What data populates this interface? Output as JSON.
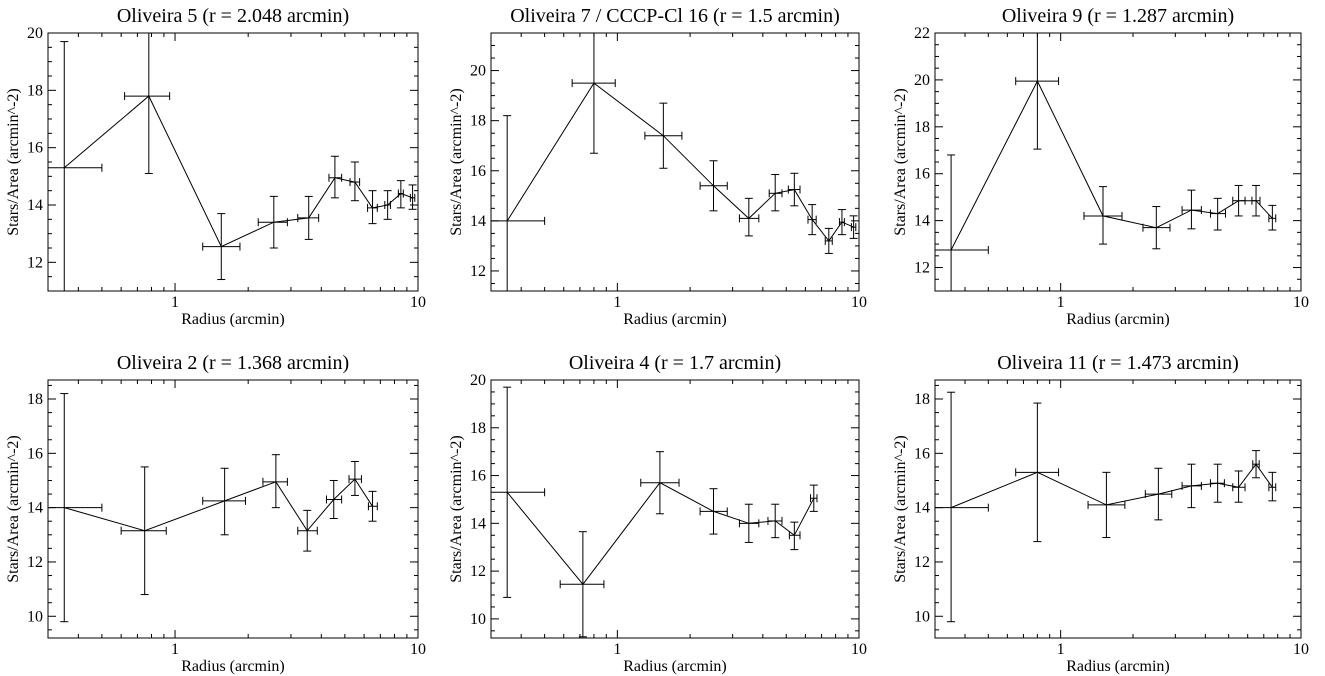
{
  "chart_data": [
    {
      "type": "line",
      "title": "Oliveira 5 (r = 2.048 arcmin)",
      "xlabel": "Radius (arcmin)",
      "ylabel": "Stars/Area (arcmin^-2)",
      "xscale": "log",
      "xlim": [
        0.3,
        10
      ],
      "ylim": [
        11,
        20
      ],
      "xticks": [
        1,
        10
      ],
      "yticks": [
        12,
        14,
        16,
        18,
        20
      ],
      "points": [
        {
          "x": 0.35,
          "y": 15.3,
          "xerr": [
            0.05,
            0.5
          ],
          "yerr": [
            11,
            19.7
          ]
        },
        {
          "x": 0.78,
          "y": 17.8,
          "xerr": [
            0.62,
            0.95
          ],
          "yerr": [
            15.1,
            20.4
          ]
        },
        {
          "x": 1.55,
          "y": 12.55,
          "xerr": [
            1.3,
            1.85
          ],
          "yerr": [
            11.4,
            13.7
          ]
        },
        {
          "x": 2.55,
          "y": 13.4,
          "xerr": [
            2.2,
            2.9
          ],
          "yerr": [
            12.5,
            14.3
          ]
        },
        {
          "x": 3.55,
          "y": 13.55,
          "xerr": [
            3.2,
            3.9
          ],
          "yerr": [
            12.8,
            14.3
          ]
        },
        {
          "x": 4.55,
          "y": 14.95,
          "xerr": [
            4.3,
            4.85
          ],
          "yerr": [
            14.25,
            15.7
          ]
        },
        {
          "x": 5.5,
          "y": 14.8,
          "xerr": [
            5.25,
            5.75
          ],
          "yerr": [
            14.15,
            15.5
          ]
        },
        {
          "x": 6.5,
          "y": 13.9,
          "xerr": [
            6.2,
            6.8
          ],
          "yerr": [
            13.35,
            14.5
          ]
        },
        {
          "x": 7.5,
          "y": 14.0,
          "xerr": [
            7.3,
            7.7
          ],
          "yerr": [
            13.5,
            14.5
          ]
        },
        {
          "x": 8.5,
          "y": 14.4,
          "xerr": [
            8.3,
            8.7
          ],
          "yerr": [
            13.9,
            14.85
          ]
        },
        {
          "x": 9.5,
          "y": 14.25,
          "xerr": [
            9.3,
            9.7
          ],
          "yerr": [
            13.85,
            14.7
          ]
        }
      ]
    },
    {
      "type": "line",
      "title": "Oliveira 7 / CCCP-Cl 16 (r = 1.5 arcmin)",
      "xlabel": "Radius (arcmin)",
      "ylabel": "Stars/Area (arcmin^-2)",
      "xscale": "log",
      "xlim": [
        0.3,
        10
      ],
      "ylim": [
        11.2,
        21.5
      ],
      "xticks": [
        1,
        10
      ],
      "yticks": [
        12,
        14,
        16,
        18,
        20
      ],
      "points": [
        {
          "x": 0.35,
          "y": 14.0,
          "xerr": [
            0.05,
            0.5
          ],
          "yerr": [
            11.2,
            18.2
          ]
        },
        {
          "x": 0.8,
          "y": 19.5,
          "xerr": [
            0.65,
            0.98
          ],
          "yerr": [
            16.7,
            21.5
          ]
        },
        {
          "x": 1.55,
          "y": 17.4,
          "xerr": [
            1.3,
            1.85
          ],
          "yerr": [
            16.1,
            18.7
          ]
        },
        {
          "x": 2.5,
          "y": 15.4,
          "xerr": [
            2.2,
            2.85
          ],
          "yerr": [
            14.4,
            16.4
          ]
        },
        {
          "x": 3.5,
          "y": 14.1,
          "xerr": [
            3.2,
            3.85
          ],
          "yerr": [
            13.4,
            14.9
          ]
        },
        {
          "x": 4.5,
          "y": 15.1,
          "xerr": [
            4.25,
            4.8
          ],
          "yerr": [
            14.4,
            15.85
          ]
        },
        {
          "x": 5.4,
          "y": 15.25,
          "xerr": [
            5.1,
            5.7
          ],
          "yerr": [
            14.6,
            15.9
          ]
        },
        {
          "x": 6.4,
          "y": 14.05,
          "xerr": [
            6.15,
            6.65
          ],
          "yerr": [
            13.45,
            14.65
          ]
        },
        {
          "x": 7.5,
          "y": 13.2,
          "xerr": [
            7.25,
            7.75
          ],
          "yerr": [
            12.7,
            13.7
          ]
        },
        {
          "x": 8.5,
          "y": 13.95,
          "xerr": [
            8.3,
            8.7
          ],
          "yerr": [
            13.45,
            14.45
          ]
        },
        {
          "x": 9.5,
          "y": 13.75,
          "xerr": [
            9.3,
            9.7
          ],
          "yerr": [
            13.3,
            14.2
          ]
        }
      ]
    },
    {
      "type": "line",
      "title": "Oliveira 9 (r = 1.287 arcmin)",
      "xlabel": "Radius (arcmin)",
      "ylabel": "Stars/Area (arcmin^-2)",
      "xscale": "log",
      "xlim": [
        0.3,
        10
      ],
      "ylim": [
        11,
        22
      ],
      "xticks": [
        1,
        10
      ],
      "yticks": [
        12,
        14,
        16,
        18,
        20,
        22
      ],
      "points": [
        {
          "x": 0.35,
          "y": 12.75,
          "xerr": [
            0.05,
            0.5
          ],
          "yerr": [
            11,
            16.8
          ]
        },
        {
          "x": 0.8,
          "y": 19.95,
          "xerr": [
            0.65,
            0.98
          ],
          "yerr": [
            17.05,
            22
          ]
        },
        {
          "x": 1.5,
          "y": 14.2,
          "xerr": [
            1.25,
            1.8
          ],
          "yerr": [
            13.0,
            15.45
          ]
        },
        {
          "x": 2.5,
          "y": 13.7,
          "xerr": [
            2.2,
            2.85
          ],
          "yerr": [
            12.8,
            14.6
          ]
        },
        {
          "x": 3.5,
          "y": 14.45,
          "xerr": [
            3.2,
            3.85
          ],
          "yerr": [
            13.65,
            15.3
          ]
        },
        {
          "x": 4.5,
          "y": 14.3,
          "xerr": [
            4.2,
            4.85
          ],
          "yerr": [
            13.6,
            14.95
          ]
        },
        {
          "x": 5.5,
          "y": 14.85,
          "xerr": [
            5.2,
            5.85
          ],
          "yerr": [
            14.2,
            15.5
          ]
        },
        {
          "x": 6.5,
          "y": 14.85,
          "xerr": [
            6.25,
            6.75
          ],
          "yerr": [
            14.2,
            15.5
          ]
        },
        {
          "x": 7.6,
          "y": 14.1,
          "xerr": [
            7.35,
            7.85
          ],
          "yerr": [
            13.6,
            14.65
          ]
        }
      ]
    },
    {
      "type": "line",
      "title": "Oliveira 2 (r = 1.368 arcmin)",
      "xlabel": "Radius (arcmin)",
      "ylabel": "Stars/Area (arcmin^-2)",
      "xscale": "log",
      "xlim": [
        0.3,
        10
      ],
      "ylim": [
        9.2,
        18.7
      ],
      "xticks": [
        1,
        10
      ],
      "yticks": [
        10,
        12,
        14,
        16,
        18
      ],
      "points": [
        {
          "x": 0.35,
          "y": 14.0,
          "xerr": [
            0.05,
            0.5
          ],
          "yerr": [
            9.8,
            18.2
          ]
        },
        {
          "x": 0.75,
          "y": 13.15,
          "xerr": [
            0.6,
            0.92
          ],
          "yerr": [
            10.8,
            15.5
          ]
        },
        {
          "x": 1.6,
          "y": 14.25,
          "xerr": [
            1.3,
            1.95
          ],
          "yerr": [
            13.0,
            15.45
          ]
        },
        {
          "x": 2.6,
          "y": 14.95,
          "xerr": [
            2.3,
            2.9
          ],
          "yerr": [
            14.0,
            15.95
          ]
        },
        {
          "x": 3.5,
          "y": 13.15,
          "xerr": [
            3.2,
            3.85
          ],
          "yerr": [
            12.4,
            13.9
          ]
        },
        {
          "x": 4.5,
          "y": 14.3,
          "xerr": [
            4.2,
            4.85
          ],
          "yerr": [
            13.6,
            15.0
          ]
        },
        {
          "x": 5.5,
          "y": 15.05,
          "xerr": [
            5.2,
            5.85
          ],
          "yerr": [
            14.45,
            15.7
          ]
        },
        {
          "x": 6.5,
          "y": 14.05,
          "xerr": [
            6.25,
            6.8
          ],
          "yerr": [
            13.5,
            14.6
          ]
        }
      ]
    },
    {
      "type": "line",
      "title": "Oliveira 4 (r = 1.7 arcmin)",
      "xlabel": "Radius (arcmin)",
      "ylabel": "Stars/Area (arcmin^-2)",
      "xscale": "log",
      "xlim": [
        0.3,
        10
      ],
      "ylim": [
        9.2,
        20
      ],
      "xticks": [
        1,
        10
      ],
      "yticks": [
        10,
        12,
        14,
        16,
        18,
        20
      ],
      "points": [
        {
          "x": 0.35,
          "y": 15.3,
          "xerr": [
            0.05,
            0.5
          ],
          "yerr": [
            10.9,
            19.7
          ]
        },
        {
          "x": 0.72,
          "y": 11.45,
          "xerr": [
            0.58,
            0.88
          ],
          "yerr": [
            9.25,
            13.65
          ]
        },
        {
          "x": 1.5,
          "y": 15.7,
          "xerr": [
            1.25,
            1.8
          ],
          "yerr": [
            14.4,
            17.0
          ]
        },
        {
          "x": 2.5,
          "y": 14.5,
          "xerr": [
            2.2,
            2.85
          ],
          "yerr": [
            13.55,
            15.45
          ]
        },
        {
          "x": 3.5,
          "y": 14.0,
          "xerr": [
            3.2,
            3.85
          ],
          "yerr": [
            13.2,
            14.8
          ]
        },
        {
          "x": 4.5,
          "y": 14.1,
          "xerr": [
            4.2,
            4.8
          ],
          "yerr": [
            13.4,
            14.8
          ]
        },
        {
          "x": 5.4,
          "y": 13.5,
          "xerr": [
            5.15,
            5.7
          ],
          "yerr": [
            12.9,
            14.05
          ]
        },
        {
          "x": 6.5,
          "y": 15.05,
          "xerr": [
            6.3,
            6.7
          ],
          "yerr": [
            14.5,
            15.6
          ]
        }
      ]
    },
    {
      "type": "line",
      "title": "Oliveira 11 (r = 1.473 arcmin)",
      "xlabel": "Radius (arcmin)",
      "ylabel": "Stars/Area (arcmin^-2)",
      "xscale": "log",
      "xlim": [
        0.3,
        10
      ],
      "ylim": [
        9.2,
        18.7
      ],
      "xticks": [
        1,
        10
      ],
      "yticks": [
        10,
        12,
        14,
        16,
        18
      ],
      "points": [
        {
          "x": 0.35,
          "y": 14.0,
          "xerr": [
            0.05,
            0.5
          ],
          "yerr": [
            9.8,
            18.25
          ]
        },
        {
          "x": 0.8,
          "y": 15.3,
          "xerr": [
            0.65,
            0.98
          ],
          "yerr": [
            12.75,
            17.85
          ]
        },
        {
          "x": 1.55,
          "y": 14.1,
          "xerr": [
            1.3,
            1.85
          ],
          "yerr": [
            12.9,
            15.3
          ]
        },
        {
          "x": 2.55,
          "y": 14.5,
          "xerr": [
            2.25,
            2.9
          ],
          "yerr": [
            13.55,
            15.45
          ]
        },
        {
          "x": 3.5,
          "y": 14.8,
          "xerr": [
            3.2,
            3.85
          ],
          "yerr": [
            14.0,
            15.6
          ]
        },
        {
          "x": 4.5,
          "y": 14.9,
          "xerr": [
            4.2,
            4.8
          ],
          "yerr": [
            14.2,
            15.6
          ]
        },
        {
          "x": 5.5,
          "y": 14.75,
          "xerr": [
            5.2,
            5.85
          ],
          "yerr": [
            14.2,
            15.35
          ]
        },
        {
          "x": 6.5,
          "y": 15.6,
          "xerr": [
            6.3,
            6.7
          ],
          "yerr": [
            15.1,
            16.1
          ]
        },
        {
          "x": 7.6,
          "y": 14.75,
          "xerr": [
            7.35,
            7.85
          ],
          "yerr": [
            14.25,
            15.3
          ]
        }
      ]
    }
  ]
}
